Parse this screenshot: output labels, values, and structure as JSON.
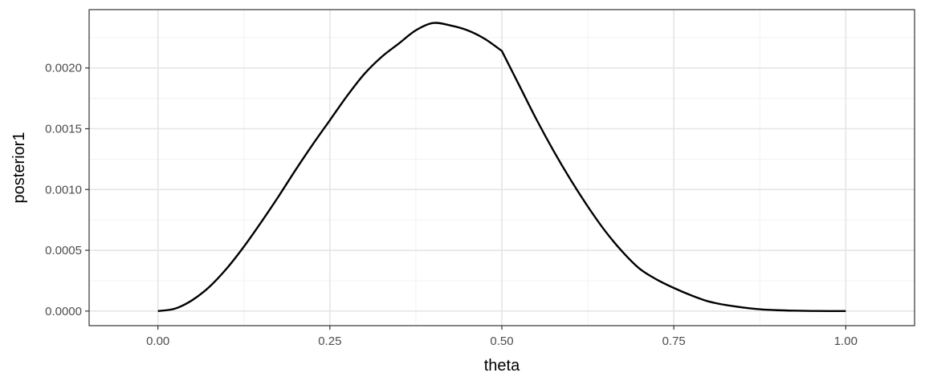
{
  "chart_data": {
    "type": "line",
    "title": "",
    "xlabel": "theta",
    "ylabel": "posterior1",
    "xlim": [
      -0.1,
      1.1
    ],
    "ylim": [
      -0.00012,
      0.00248
    ],
    "x_ticks": [
      0.0,
      0.25,
      0.5,
      0.75,
      1.0
    ],
    "x_tick_labels": [
      "0.00",
      "0.25",
      "0.50",
      "0.75",
      "1.00"
    ],
    "y_ticks": [
      0.0,
      0.0005,
      0.001,
      0.0015,
      0.002
    ],
    "y_tick_labels": [
      "0.0000",
      "0.0005",
      "0.0010",
      "0.0015",
      "0.0020"
    ],
    "grid": true,
    "legend": "none",
    "series": [
      {
        "color": "#000000",
        "x": [
          0.0,
          0.025,
          0.05,
          0.075,
          0.1,
          0.125,
          0.15,
          0.175,
          0.2,
          0.225,
          0.25,
          0.275,
          0.3,
          0.325,
          0.35,
          0.375,
          0.4,
          0.425,
          0.45,
          0.475,
          0.5,
          0.525,
          0.55,
          0.575,
          0.6,
          0.625,
          0.65,
          0.675,
          0.7,
          0.725,
          0.75,
          0.775,
          0.8,
          0.825,
          0.85,
          0.875,
          0.9,
          0.925,
          0.95,
          0.975,
          1.0
        ],
        "y": [
          0.0,
          2e-05,
          9e-05,
          0.0002,
          0.00035,
          0.00053,
          0.00073,
          0.00094,
          0.00116,
          0.00137,
          0.00157,
          0.00177,
          0.00195,
          0.00209,
          0.0022,
          0.00231,
          0.00237,
          0.00235,
          0.00231,
          0.00224,
          0.00214,
          0.00186,
          0.00158,
          0.00132,
          0.00108,
          0.00086,
          0.00066,
          0.00049,
          0.00035,
          0.00026,
          0.00019,
          0.00013,
          8e-05,
          5e-05,
          3e-05,
          1.5e-05,
          7e-06,
          3e-06,
          1e-06,
          0.0,
          0.0
        ]
      }
    ]
  }
}
